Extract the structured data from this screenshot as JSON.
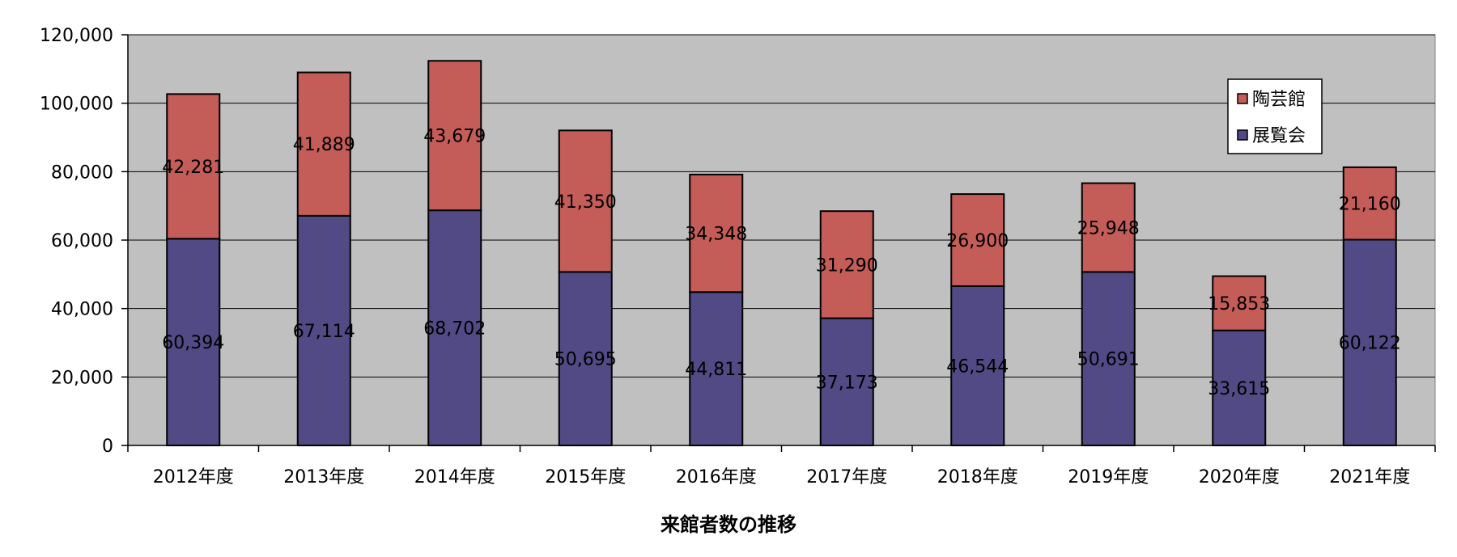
{
  "chart_data": {
    "type": "bar",
    "stacked": true,
    "title": "",
    "xlabel": "来館者数の推移",
    "ylabel": "",
    "categories": [
      "2012年度",
      "2013年度",
      "2014年度",
      "2015年度",
      "2016年度",
      "2017年度",
      "2018年度",
      "2019年度",
      "2020年度",
      "2021年度"
    ],
    "series": [
      {
        "name": "展覧会",
        "color": "#514a84",
        "values": [
          60394,
          67114,
          68702,
          50695,
          44811,
          37173,
          46544,
          50691,
          33615,
          60122
        ],
        "labels": [
          "60,394",
          "67,114",
          "68,702",
          "50,695",
          "44,811",
          "37,173",
          "46,544",
          "50,691",
          "33,615",
          "60,122"
        ]
      },
      {
        "name": "陶芸館",
        "color": "#c45c58",
        "values": [
          42281,
          41889,
          43679,
          41350,
          34348,
          31290,
          26900,
          25948,
          15853,
          21160
        ],
        "labels": [
          "42,281",
          "41,889",
          "43,679",
          "41,350",
          "34,348",
          "31,290",
          "26,900",
          "25,948",
          "15,853",
          "21,160"
        ]
      }
    ],
    "ylim": [
      0,
      120000
    ],
    "yticks": [
      0,
      20000,
      40000,
      60000,
      80000,
      100000,
      120000
    ],
    "ytick_labels": [
      "0",
      "20,000",
      "40,000",
      "60,000",
      "80,000",
      "100,000",
      "120,000"
    ],
    "grid": true,
    "plot_background": "#c0c0c0",
    "legend_position": "top-right",
    "legend_order": [
      "陶芸館",
      "展覧会"
    ]
  }
}
